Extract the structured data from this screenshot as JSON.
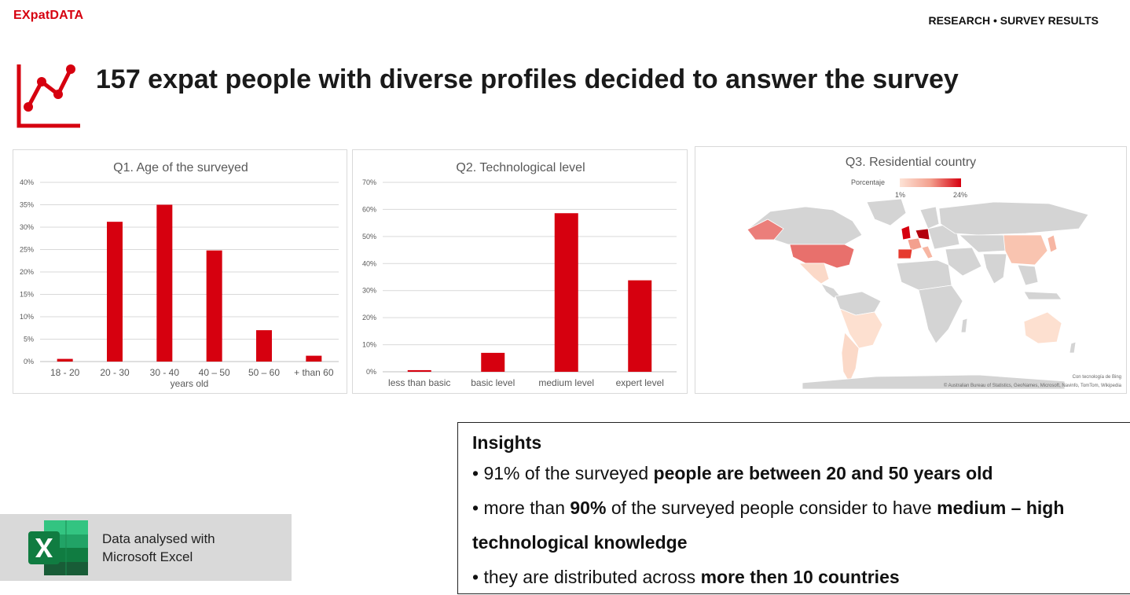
{
  "header": {
    "logo_ex": "EX",
    "logo_rest": "patDATA",
    "section": "RESEARCH • SURVEY RESULTS"
  },
  "title": "157 expat people with diverse profiles decided to answer the survey",
  "icons": {
    "title_icon": "line-chart-icon",
    "excel_icon": "excel-icon"
  },
  "colors": {
    "accent": "#d6000f",
    "bar": "#d6000f",
    "grid": "#d9d9d9"
  },
  "chart_data": [
    {
      "type": "bar",
      "title": "Q1. Age of the surveyed",
      "xlabel": "years old",
      "ylabel": "",
      "categories": [
        "18 - 20",
        "20 - 30",
        "30 - 40",
        "40 – 50",
        "50 – 60",
        "+ than 60"
      ],
      "values": [
        0.6,
        31.2,
        35.0,
        24.8,
        7.0,
        1.3
      ],
      "ylim": [
        0,
        40
      ],
      "yticks": [
        "0%",
        "5%",
        "10%",
        "15%",
        "20%",
        "25%",
        "30%",
        "35%",
        "40%"
      ],
      "grid": true,
      "legend": "none"
    },
    {
      "type": "bar",
      "title": "Q2. Technological level",
      "xlabel": "",
      "ylabel": "",
      "categories": [
        "less than basic",
        "basic level",
        "medium level",
        "expert level"
      ],
      "values": [
        0.6,
        7.0,
        58.6,
        33.8
      ],
      "ylim": [
        0,
        70
      ],
      "yticks": [
        "0%",
        "10%",
        "20%",
        "30%",
        "40%",
        "50%",
        "60%",
        "70%"
      ],
      "grid": true,
      "legend": "none"
    }
  ],
  "map": {
    "title": "Q3. Residential country",
    "legend_label": "Porcentaje",
    "legend_min": "1%",
    "legend_max": "24%",
    "credit_line1": "Con tecnología de Bing",
    "credit_line2": "© Australian Bureau of Statistics, GeoNames, Microsoft, Navinfo, TomTom, Wikipedia"
  },
  "insights": {
    "title": "Insights",
    "l1_a": "• 91% of the surveyed ",
    "l1_b": "people are between 20 and 50 years old",
    "l2_a": "• more than ",
    "l2_b": "90%",
    "l2_c": " of the surveyed people consider to have ",
    "l2_d": "medium – high",
    "l3_a": "technological knowledge",
    "l4_a": "• they are distributed across ",
    "l4_b": "more then 10 countries"
  },
  "excel_note": {
    "line1": "Data analysed with",
    "line2": "Microsoft Excel"
  }
}
